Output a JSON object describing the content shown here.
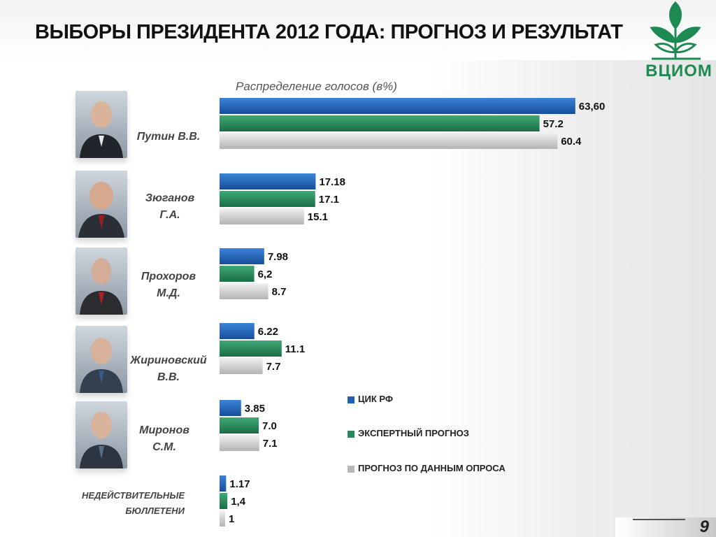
{
  "title": "ВЫБОРЫ ПРЕЗИДЕНТА 2012 ГОДА: ПРОГНОЗ И РЕЗУЛЬТАТ",
  "logo_text": "ВЦИОМ",
  "logo_icon": "plant-sprout-icon",
  "page_number": "9",
  "colors": {
    "blue": "#1f5fb5",
    "green": "#25885a",
    "gray": "#c9c9c9",
    "brand": "#1d8a52"
  },
  "candidates": [
    {
      "name_line1": "Путин В.В.",
      "name_line2": ""
    },
    {
      "name_line1": "Зюганов",
      "name_line2": "Г.А."
    },
    {
      "name_line1": "Прохоров",
      "name_line2": "М.Д."
    },
    {
      "name_line1": "Жириновский",
      "name_line2": "В.В."
    },
    {
      "name_line1": "Миронов",
      "name_line2": "С.М."
    }
  ],
  "invalid_label": {
    "line1": "НЕДЕЙСТВИТЕЛЬНЫЕ",
    "line2": "БЮЛЛЕТЕНИ"
  },
  "legend": [
    "ЦИК РФ",
    "ЭКСПЕРТНЫЙ ПРОГНОЗ",
    "ПРОГНОЗ ПО ДАННЫМ ОПРОСА"
  ],
  "chart_data": {
    "type": "bar",
    "orientation": "horizontal",
    "title": "Распределение голосов (в%)",
    "categories": [
      "Путин В.В.",
      "Зюганов Г.А.",
      "Прохоров М.Д.",
      "Жириновский В.В.",
      "Миронов С.М.",
      "НЕДЕЙСТВИТЕЛЬНЫЕ БЮЛЛЕТЕНИ"
    ],
    "series": [
      {
        "name": "ЦИК РФ",
        "values": [
          63.6,
          17.18,
          7.98,
          6.22,
          3.85,
          1.17
        ],
        "labels": [
          "63,60",
          "17.18",
          "7.98",
          "6.22",
          "3.85",
          "1.17"
        ]
      },
      {
        "name": "ЭКСПЕРТНЫЙ ПРОГНОЗ",
        "values": [
          57.2,
          17.1,
          6.2,
          11.1,
          7.0,
          1.4
        ],
        "labels": [
          "57.2",
          "17.1",
          "6,2",
          "11.1",
          "7.0",
          "1,4"
        ]
      },
      {
        "name": "ПРОГНОЗ ПО ДАННЫМ ОПРОСА",
        "values": [
          60.4,
          15.1,
          8.7,
          7.7,
          7.1,
          1
        ],
        "labels": [
          "60.4",
          "15.1",
          "8.7",
          "7.7",
          "7.1",
          "1"
        ]
      }
    ],
    "legend_position": "right",
    "grid": false
  }
}
